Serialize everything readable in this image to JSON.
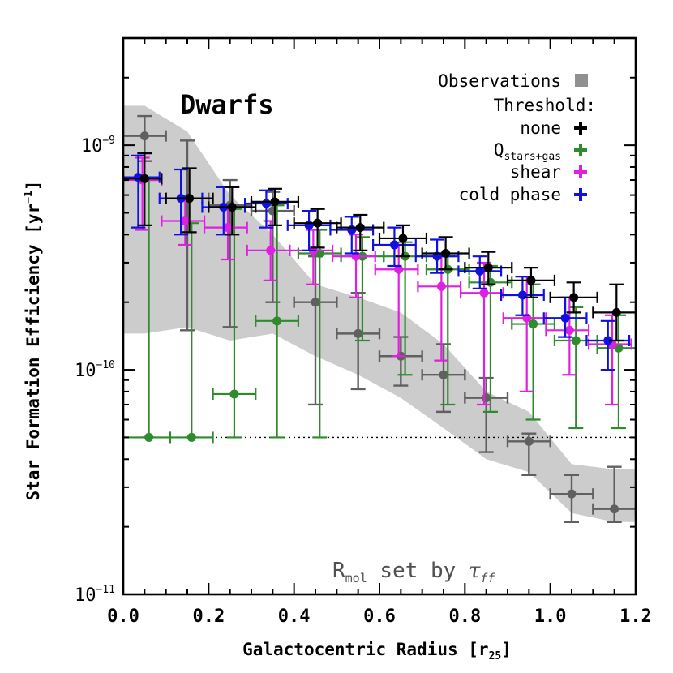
{
  "chart_data": {
    "type": "scatter",
    "title": "Dwarfs",
    "xlabel": "Galactocentric Radius [r25]",
    "ylabel": "Star Formation Efficiency [yr−1]",
    "annotation": "Rmol set by τff",
    "xlim": [
      0.0,
      1.2
    ],
    "ylim": [
      1e-11,
      3e-09
    ],
    "yscale": "log",
    "x_ticks": [
      "0.0",
      "0.2",
      "0.4",
      "0.6",
      "0.8",
      "1.0",
      "1.2"
    ],
    "y_ticks": [
      {
        "value": 1e-11,
        "mantissa": "10",
        "exp": "−11"
      },
      {
        "value": 1e-10,
        "mantissa": "10",
        "exp": "−10"
      },
      {
        "value": 1e-09,
        "mantissa": "10",
        "exp": "−9"
      }
    ],
    "legend": {
      "placement": "top-right",
      "observations_label": "Observations",
      "threshold_label": "Threshold:",
      "entries": [
        {
          "key": "none",
          "label": "none",
          "sub": ""
        },
        {
          "key": "q",
          "label": "Q",
          "sub": "stars+gas"
        },
        {
          "key": "shear",
          "label": "shear",
          "sub": ""
        },
        {
          "key": "cold",
          "label": "cold phase",
          "sub": ""
        }
      ]
    },
    "colors": {
      "none": "#000000",
      "q": "#2e8b2e",
      "shear": "#e020e0",
      "cold": "#1010e0",
      "observations_band": "#cccccc",
      "observations_points": "#606060"
    },
    "reference_line": {
      "y": 5e-11,
      "style": "dotted"
    },
    "observations": {
      "band": [
        {
          "x": 0.0,
          "lo": 1.45e-10,
          "hi": 1.5e-09
        },
        {
          "x": 0.05,
          "lo": 1.45e-10,
          "hi": 1.5e-09
        },
        {
          "x": 0.15,
          "lo": 1.55e-10,
          "hi": 1.15e-09
        },
        {
          "x": 0.25,
          "lo": 1.35e-10,
          "hi": 6e-10
        },
        {
          "x": 0.35,
          "lo": 1.45e-10,
          "hi": 4e-10
        },
        {
          "x": 0.45,
          "lo": 1.15e-10,
          "hi": 2.4e-10
        },
        {
          "x": 0.55,
          "lo": 9.5e-11,
          "hi": 2.1e-10
        },
        {
          "x": 0.65,
          "lo": 7.5e-11,
          "hi": 1.8e-10
        },
        {
          "x": 0.75,
          "lo": 5.5e-11,
          "hi": 1.3e-10
        },
        {
          "x": 0.85,
          "lo": 4e-11,
          "hi": 8e-11
        },
        {
          "x": 0.95,
          "lo": 3.5e-11,
          "hi": 6.5e-11
        },
        {
          "x": 1.05,
          "lo": 2.3e-11,
          "hi": 3.8e-11
        },
        {
          "x": 1.15,
          "lo": 2.1e-11,
          "hi": 3.6e-11
        },
        {
          "x": 1.2,
          "lo": 2.1e-11,
          "hi": 3.6e-11
        }
      ],
      "points": [
        {
          "x": 0.05,
          "y": 1.1e-09,
          "ylo": 8.5e-10,
          "yhi": 1.35e-09
        },
        {
          "x": 0.15,
          "y": 5.8e-10,
          "ylo": 1.5e-10,
          "yhi": 1.05e-09
        },
        {
          "x": 0.25,
          "y": 5.4e-10,
          "ylo": 1.55e-10,
          "yhi": 7e-10
        },
        {
          "x": 0.35,
          "y": 5.1e-10,
          "ylo": 2e-10,
          "yhi": 6.2e-10
        },
        {
          "x": 0.45,
          "y": 2e-10,
          "ylo": 7e-11,
          "yhi": 3.2e-10
        },
        {
          "x": 0.55,
          "y": 1.45e-10,
          "ylo": 8.2e-11,
          "yhi": 2.2e-10
        },
        {
          "x": 0.65,
          "y": 1.15e-10,
          "ylo": 8.5e-11,
          "yhi": 1.4e-10
        },
        {
          "x": 0.75,
          "y": 9.5e-11,
          "ylo": 6.5e-11,
          "yhi": 1.3e-10
        },
        {
          "x": 0.85,
          "y": 7.5e-11,
          "ylo": 4.3e-11,
          "yhi": 9.2e-11
        },
        {
          "x": 0.95,
          "y": 4.8e-11,
          "ylo": 3.4e-11,
          "yhi": 5.2e-11
        },
        {
          "x": 1.05,
          "y": 2.8e-11,
          "ylo": 2.1e-11,
          "yhi": 3.4e-11
        },
        {
          "x": 1.15,
          "y": 2.4e-11,
          "ylo": 2.1e-11,
          "yhi": 3.7e-11
        }
      ]
    },
    "series": [
      {
        "key": "none",
        "points": [
          {
            "x": 0.05,
            "y": 7.1e-10,
            "ylo": 4.4e-10,
            "yhi": 9.2e-10,
            "xlo": 0.0,
            "xhi": 0.09
          },
          {
            "x": 0.155,
            "y": 5.8e-10,
            "ylo": 4.1e-10,
            "yhi": 7.9e-10,
            "xlo": 0.1,
            "xhi": 0.21
          },
          {
            "x": 0.255,
            "y": 5.3e-10,
            "ylo": 4e-10,
            "yhi": 6.5e-10,
            "xlo": 0.2,
            "xhi": 0.31
          },
          {
            "x": 0.355,
            "y": 5.6e-10,
            "ylo": 4.4e-10,
            "yhi": 6.4e-10,
            "xlo": 0.3,
            "xhi": 0.41
          },
          {
            "x": 0.455,
            "y": 4.5e-10,
            "ylo": 3.5e-10,
            "yhi": 5.2e-10,
            "xlo": 0.4,
            "xhi": 0.51
          },
          {
            "x": 0.555,
            "y": 4.3e-10,
            "ylo": 3.4e-10,
            "yhi": 4.9e-10,
            "xlo": 0.5,
            "xhi": 0.61
          },
          {
            "x": 0.655,
            "y": 3.85e-10,
            "ylo": 3.2e-10,
            "yhi": 4.4e-10,
            "xlo": 0.6,
            "xhi": 0.71
          },
          {
            "x": 0.755,
            "y": 3.3e-10,
            "ylo": 2.8e-10,
            "yhi": 3.9e-10,
            "xlo": 0.7,
            "xhi": 0.81
          },
          {
            "x": 0.855,
            "y": 2.85e-10,
            "ylo": 2.4e-10,
            "yhi": 3.35e-10,
            "xlo": 0.8,
            "xhi": 0.91
          },
          {
            "x": 0.955,
            "y": 2.5e-10,
            "ylo": 2.1e-10,
            "yhi": 2.85e-10,
            "xlo": 0.9,
            "xhi": 1.01
          },
          {
            "x": 1.055,
            "y": 2.1e-10,
            "ylo": 1.8e-10,
            "yhi": 2.45e-10,
            "xlo": 1.0,
            "xhi": 1.11
          },
          {
            "x": 1.155,
            "y": 1.8e-10,
            "ylo": 1.35e-10,
            "yhi": 2.4e-10,
            "xlo": 1.1,
            "xhi": 1.2
          }
        ]
      },
      {
        "key": "q",
        "points": [
          {
            "x": 0.06,
            "y": 5e-11,
            "ylo": 5e-11,
            "yhi": 7e-10,
            "xlo": 0.0,
            "xhi": 0.11
          },
          {
            "x": 0.16,
            "y": 5e-11,
            "ylo": 5e-11,
            "yhi": 4.5e-10,
            "xlo": 0.11,
            "xhi": 0.21
          },
          {
            "x": 0.26,
            "y": 7.8e-11,
            "ylo": 5e-11,
            "yhi": 5.2e-10,
            "xlo": 0.21,
            "xhi": 0.31
          },
          {
            "x": 0.36,
            "y": 1.65e-10,
            "ylo": 5e-11,
            "yhi": 5.4e-10,
            "xlo": 0.31,
            "xhi": 0.41
          },
          {
            "x": 0.46,
            "y": 3.3e-10,
            "ylo": 5e-11,
            "yhi": 4.2e-10,
            "xlo": 0.41,
            "xhi": 0.51
          },
          {
            "x": 0.56,
            "y": 3.2e-10,
            "ylo": 1.35e-10,
            "yhi": 3.9e-10,
            "xlo": 0.51,
            "xhi": 0.61
          },
          {
            "x": 0.66,
            "y": 3.2e-10,
            "ylo": 9.5e-11,
            "yhi": 3.7e-10,
            "xlo": 0.61,
            "xhi": 0.71
          },
          {
            "x": 0.76,
            "y": 2.8e-10,
            "ylo": 7e-11,
            "yhi": 3.2e-10,
            "xlo": 0.71,
            "xhi": 0.81
          },
          {
            "x": 0.86,
            "y": 2.45e-10,
            "ylo": 6.5e-11,
            "yhi": 2.9e-10,
            "xlo": 0.81,
            "xhi": 0.91
          },
          {
            "x": 0.96,
            "y": 1.6e-10,
            "ylo": 6e-11,
            "yhi": 2.4e-10,
            "xlo": 0.91,
            "xhi": 1.01
          },
          {
            "x": 1.06,
            "y": 1.35e-10,
            "ylo": 5.5e-11,
            "yhi": 1.9e-10,
            "xlo": 1.01,
            "xhi": 1.11
          },
          {
            "x": 1.16,
            "y": 1.25e-10,
            "ylo": 5.5e-11,
            "yhi": 1.75e-10,
            "xlo": 1.11,
            "xhi": 1.2
          }
        ]
      },
      {
        "key": "shear",
        "points": [
          {
            "x": 0.045,
            "y": 7e-10,
            "ylo": 4.2e-10,
            "yhi": 8.8e-10,
            "xlo": 0.0,
            "xhi": 0.09
          },
          {
            "x": 0.145,
            "y": 4.6e-10,
            "ylo": 3.6e-10,
            "yhi": 5.9e-10,
            "xlo": 0.09,
            "xhi": 0.19
          },
          {
            "x": 0.245,
            "y": 4.3e-10,
            "ylo": 3.1e-10,
            "yhi": 5.2e-10,
            "xlo": 0.19,
            "xhi": 0.29
          },
          {
            "x": 0.345,
            "y": 3.4e-10,
            "ylo": 2.5e-10,
            "yhi": 4.6e-10,
            "xlo": 0.29,
            "xhi": 0.39
          },
          {
            "x": 0.445,
            "y": 3.4e-10,
            "ylo": 2.4e-10,
            "yhi": 4.2e-10,
            "xlo": 0.39,
            "xhi": 0.49
          },
          {
            "x": 0.545,
            "y": 3.2e-10,
            "ylo": 2.1e-10,
            "yhi": 4e-10,
            "xlo": 0.49,
            "xhi": 0.59
          },
          {
            "x": 0.645,
            "y": 2.8e-10,
            "ylo": 1.15e-10,
            "yhi": 3.6e-10,
            "xlo": 0.59,
            "xhi": 0.69
          },
          {
            "x": 0.745,
            "y": 2.35e-10,
            "ylo": 1.1e-10,
            "yhi": 3.3e-10,
            "xlo": 0.69,
            "xhi": 0.79
          },
          {
            "x": 0.845,
            "y": 2.2e-10,
            "ylo": 7e-11,
            "yhi": 3e-10,
            "xlo": 0.79,
            "xhi": 0.89
          },
          {
            "x": 0.945,
            "y": 1.7e-10,
            "ylo": 8e-11,
            "yhi": 2.6e-10,
            "xlo": 0.89,
            "xhi": 0.99
          },
          {
            "x": 1.045,
            "y": 1.5e-10,
            "ylo": 9.5e-11,
            "yhi": 2.1e-10,
            "xlo": 0.99,
            "xhi": 1.09
          },
          {
            "x": 1.145,
            "y": 1.3e-10,
            "ylo": 7e-11,
            "yhi": 1.75e-10,
            "xlo": 1.09,
            "xhi": 1.19
          }
        ]
      },
      {
        "key": "cold",
        "points": [
          {
            "x": 0.035,
            "y": 7.2e-10,
            "ylo": 4.3e-10,
            "yhi": 9e-10,
            "xlo": 0.0,
            "xhi": 0.085
          },
          {
            "x": 0.135,
            "y": 5.8e-10,
            "ylo": 4e-10,
            "yhi": 7.8e-10,
            "xlo": 0.085,
            "xhi": 0.185
          },
          {
            "x": 0.235,
            "y": 5.3e-10,
            "ylo": 4e-10,
            "yhi": 6.5e-10,
            "xlo": 0.185,
            "xhi": 0.285
          },
          {
            "x": 0.335,
            "y": 5.5e-10,
            "ylo": 4.3e-10,
            "yhi": 6.3e-10,
            "xlo": 0.285,
            "xhi": 0.385
          },
          {
            "x": 0.435,
            "y": 4.4e-10,
            "ylo": 3.4e-10,
            "yhi": 5.1e-10,
            "xlo": 0.385,
            "xhi": 0.485
          },
          {
            "x": 0.535,
            "y": 4.2e-10,
            "ylo": 3.3e-10,
            "yhi": 4.8e-10,
            "xlo": 0.485,
            "xhi": 0.585
          },
          {
            "x": 0.635,
            "y": 3.6e-10,
            "ylo": 2.9e-10,
            "yhi": 4.3e-10,
            "xlo": 0.585,
            "xhi": 0.685
          },
          {
            "x": 0.735,
            "y": 3.2e-10,
            "ylo": 2.7e-10,
            "yhi": 3.8e-10,
            "xlo": 0.685,
            "xhi": 0.785
          },
          {
            "x": 0.835,
            "y": 2.75e-10,
            "ylo": 2.3e-10,
            "yhi": 3.2e-10,
            "xlo": 0.785,
            "xhi": 0.885
          },
          {
            "x": 0.935,
            "y": 2.15e-10,
            "ylo": 1.75e-10,
            "yhi": 2.6e-10,
            "xlo": 0.885,
            "xhi": 0.985
          },
          {
            "x": 1.035,
            "y": 1.7e-10,
            "ylo": 1.4e-10,
            "yhi": 2.1e-10,
            "xlo": 0.985,
            "xhi": 1.085
          },
          {
            "x": 1.135,
            "y": 1.35e-10,
            "ylo": 1e-10,
            "yhi": 1.65e-10,
            "xlo": 1.085,
            "xhi": 1.185
          }
        ]
      }
    ]
  }
}
